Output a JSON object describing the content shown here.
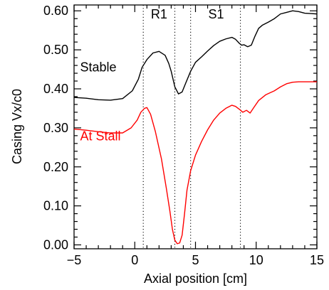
{
  "chart_data": {
    "type": "line",
    "xlabel": "Axial position [cm]",
    "ylabel": "Casing Vx/c0",
    "xlim": [
      -5,
      15
    ],
    "ylim": [
      -0.01,
      0.615
    ],
    "x_ticks": [
      -5,
      0,
      5,
      10,
      15
    ],
    "x_tick_labels": [
      "−5",
      "0",
      "5",
      "10",
      "15"
    ],
    "y_ticks": [
      0.0,
      0.1,
      0.2,
      0.3,
      0.4,
      0.5,
      0.6
    ],
    "y_tick_labels": [
      "0.00",
      "0.10",
      "0.20",
      "0.30",
      "0.40",
      "0.50",
      "0.60"
    ],
    "x_minor_step": 1,
    "y_minor_step": 0.02,
    "grid": false,
    "vlines": [
      0.7,
      3.3,
      4.6,
      8.7
    ],
    "vline_style": "dotted",
    "annotations": [
      {
        "text": "R1",
        "x": 2.0,
        "y": 0.58
      },
      {
        "text": "S1",
        "x": 6.7,
        "y": 0.58
      }
    ],
    "series": [
      {
        "name": "Stable",
        "color": "#000000",
        "label_pos": {
          "x": -4.5,
          "y": 0.445
        },
        "x": [
          -5,
          -4,
          -3,
          -2,
          -1,
          -0.2,
          0.3,
          0.6,
          1.0,
          1.5,
          2.0,
          2.5,
          2.8,
          3.0,
          3.3,
          3.6,
          3.9,
          4.2,
          4.6,
          5.0,
          5.5,
          6.0,
          6.5,
          7.0,
          7.5,
          8.0,
          8.3,
          8.6,
          8.8,
          9.0,
          9.3,
          9.6,
          9.9,
          10.2,
          10.5,
          11.0,
          11.5,
          12.0,
          12.5,
          13.0,
          13.5,
          14.0,
          14.5,
          15.0
        ],
        "y": [
          0.378,
          0.376,
          0.372,
          0.371,
          0.375,
          0.395,
          0.425,
          0.455,
          0.475,
          0.492,
          0.496,
          0.486,
          0.465,
          0.445,
          0.405,
          0.387,
          0.392,
          0.415,
          0.445,
          0.468,
          0.482,
          0.497,
          0.511,
          0.522,
          0.528,
          0.532,
          0.527,
          0.517,
          0.512,
          0.513,
          0.508,
          0.512,
          0.535,
          0.555,
          0.563,
          0.571,
          0.58,
          0.592,
          0.596,
          0.6,
          0.598,
          0.594,
          0.593,
          0.592
        ]
      },
      {
        "name": "At Stall",
        "color": "#ff0000",
        "label_pos": {
          "x": -4.5,
          "y": 0.268
        },
        "x": [
          -5,
          -4,
          -3,
          -2,
          -1,
          -0.3,
          0.2,
          0.5,
          0.8,
          1.0,
          1.3,
          1.7,
          2.2,
          2.6,
          2.9,
          3.1,
          3.3,
          3.5,
          3.7,
          3.9,
          4.1,
          4.3,
          4.6,
          5.0,
          5.5,
          6.0,
          6.5,
          7.0,
          7.5,
          8.0,
          8.3,
          8.6,
          8.9,
          9.2,
          9.5,
          9.8,
          10.2,
          10.8,
          11.5,
          12.0,
          12.5,
          13.0,
          13.5,
          14.0,
          15.0
        ],
        "y": [
          0.297,
          0.294,
          0.29,
          0.287,
          0.287,
          0.3,
          0.32,
          0.34,
          0.35,
          0.352,
          0.335,
          0.29,
          0.22,
          0.145,
          0.085,
          0.04,
          0.012,
          0.003,
          0.005,
          0.025,
          0.08,
          0.14,
          0.19,
          0.23,
          0.265,
          0.295,
          0.32,
          0.338,
          0.35,
          0.358,
          0.355,
          0.348,
          0.34,
          0.345,
          0.338,
          0.352,
          0.37,
          0.385,
          0.395,
          0.405,
          0.413,
          0.417,
          0.418,
          0.418,
          0.418
        ]
      }
    ]
  }
}
